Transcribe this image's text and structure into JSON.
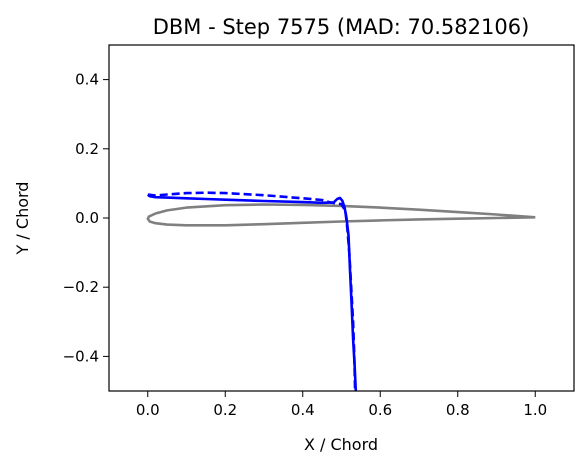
{
  "chart_data": {
    "type": "line",
    "title": "DBM - Step 7575 (MAD: 70.582106)",
    "xlabel": "X / Chord",
    "ylabel": "Y / Chord",
    "xlim": [
      -0.1,
      1.1
    ],
    "ylim": [
      -0.5,
      0.5
    ],
    "grid": false,
    "x_ticks": [
      {
        "value": 0.0,
        "label": "0.0"
      },
      {
        "value": 0.2,
        "label": "0.2"
      },
      {
        "value": 0.4,
        "label": "0.4"
      },
      {
        "value": 0.6,
        "label": "0.6"
      },
      {
        "value": 0.8,
        "label": "0.8"
      },
      {
        "value": 1.0,
        "label": "1.0"
      }
    ],
    "y_ticks": [
      {
        "value": -0.4,
        "label": "−0.4"
      },
      {
        "value": -0.2,
        "label": "−0.2"
      },
      {
        "value": 0.0,
        "label": "0.0"
      },
      {
        "value": 0.2,
        "label": "0.2"
      },
      {
        "value": 0.4,
        "label": "0.4"
      }
    ],
    "series": [
      {
        "color": "#808080",
        "style": "solid",
        "points": [
          [
            1.0,
            0.002
          ],
          [
            0.9,
            0.01
          ],
          [
            0.8,
            0.017
          ],
          [
            0.7,
            0.024
          ],
          [
            0.6,
            0.03
          ],
          [
            0.5,
            0.035
          ],
          [
            0.4,
            0.038
          ],
          [
            0.3,
            0.039
          ],
          [
            0.2,
            0.037
          ],
          [
            0.1,
            0.03
          ],
          [
            0.05,
            0.022
          ],
          [
            0.02,
            0.013
          ],
          [
            0.003,
            0.004
          ],
          [
            0.0,
            -0.002
          ],
          [
            0.005,
            -0.01
          ],
          [
            0.02,
            -0.015
          ],
          [
            0.05,
            -0.019
          ],
          [
            0.1,
            -0.021
          ],
          [
            0.2,
            -0.021
          ],
          [
            0.3,
            -0.018
          ],
          [
            0.4,
            -0.014
          ],
          [
            0.5,
            -0.01
          ],
          [
            0.6,
            -0.007
          ],
          [
            0.7,
            -0.004
          ],
          [
            0.8,
            -0.002
          ],
          [
            0.9,
            0.0
          ],
          [
            1.0,
            0.002
          ]
        ]
      },
      {
        "color": "#0000ff",
        "style": "solid",
        "points": [
          [
            0.537,
            -0.5
          ],
          [
            0.534,
            -0.43
          ],
          [
            0.53,
            -0.35
          ],
          [
            0.526,
            -0.25
          ],
          [
            0.522,
            -0.15
          ],
          [
            0.518,
            -0.05
          ],
          [
            0.513,
            0.0
          ],
          [
            0.508,
            0.03
          ],
          [
            0.502,
            0.05
          ],
          [
            0.496,
            0.058
          ],
          [
            0.489,
            0.055
          ],
          [
            0.48,
            0.045
          ],
          [
            0.45,
            0.044
          ],
          [
            0.4,
            0.046
          ],
          [
            0.3,
            0.049
          ],
          [
            0.2,
            0.053
          ],
          [
            0.15,
            0.055
          ],
          [
            0.1,
            0.057
          ],
          [
            0.05,
            0.059
          ],
          [
            0.02,
            0.06
          ],
          [
            0.005,
            0.063
          ],
          [
            0.0,
            0.067
          ]
        ]
      },
      {
        "color": "#0000ff",
        "style": "dashed",
        "points": [
          [
            0.0,
            0.068
          ],
          [
            0.02,
            0.065
          ],
          [
            0.05,
            0.068
          ],
          [
            0.1,
            0.072
          ],
          [
            0.15,
            0.073
          ],
          [
            0.2,
            0.072
          ],
          [
            0.3,
            0.066
          ],
          [
            0.4,
            0.057
          ],
          [
            0.45,
            0.052
          ],
          [
            0.47,
            0.045
          ],
          [
            0.5,
            0.04
          ],
          [
            0.51,
            0.02
          ],
          [
            0.515,
            -0.03
          ],
          [
            0.52,
            -0.1
          ],
          [
            0.525,
            -0.2
          ],
          [
            0.53,
            -0.3
          ],
          [
            0.533,
            -0.4
          ],
          [
            0.535,
            -0.5
          ]
        ]
      }
    ]
  }
}
